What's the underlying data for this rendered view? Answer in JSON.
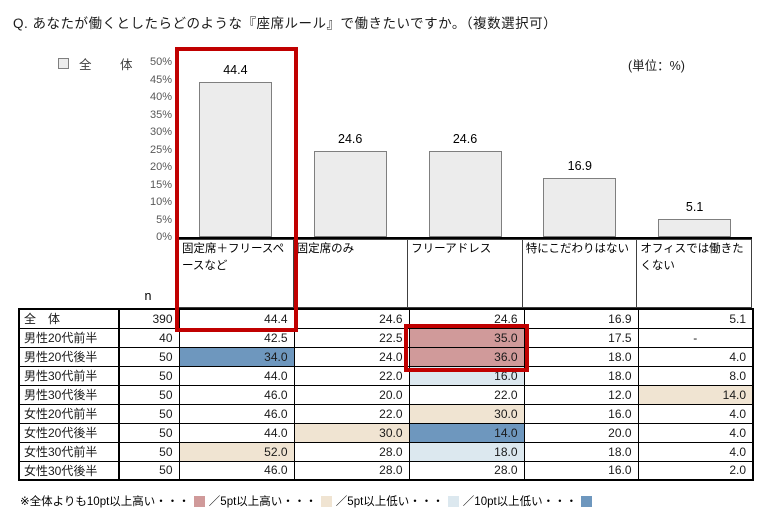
{
  "title": "Q. あなたが働くとしたらどのような『座席ルール』で働きたいですか。（複数選択可）",
  "unit_label": "(単位：%)",
  "legend": {
    "label": "全　体"
  },
  "chart_data": {
    "type": "bar",
    "title": "あなたが働くとしたらどのような『座席ルール』で働きたいですか。（複数選択可）",
    "series_name": "全体",
    "categories": [
      "固定席＋フリースペースなど",
      "固定席のみ",
      "フリーアドレス",
      "特にこだわりはない",
      "オフィスでは働きたくない"
    ],
    "values": [
      44.4,
      24.6,
      24.6,
      16.9,
      5.1
    ],
    "value_labels": [
      "44.4",
      "24.6",
      "24.6",
      "16.9",
      "5.1"
    ],
    "ylabel": "",
    "xlabel": "",
    "unit": "%",
    "ylim": [
      0,
      50
    ],
    "ytick_step": 5,
    "yticks": [
      "50%",
      "45%",
      "40%",
      "35%",
      "30%",
      "25%",
      "20%",
      "15%",
      "10%",
      "5%",
      "0%"
    ],
    "grid": false,
    "legend_position": "top-left",
    "annotations": [
      "赤枠：固定席＋フリースペースなど（全体44.4）",
      "赤枠：男性20代のフリーアドレス（35.0／36.0）"
    ]
  },
  "table": {
    "n_header": "n",
    "columns": [
      "固定席＋フリースペースなど",
      "固定席のみ",
      "フリーアドレス",
      "特にこだわりはない",
      "オフィスでは働きたくない"
    ],
    "rows": [
      {
        "label": "全　体",
        "n": "390",
        "values": [
          "44.4",
          "24.6",
          "24.6",
          "16.9",
          "5.1"
        ],
        "highlights": [
          "none",
          "none",
          "none",
          "none",
          "none"
        ]
      },
      {
        "label": "男性20代前半",
        "n": "40",
        "values": [
          "42.5",
          "22.5",
          "35.0",
          "17.5",
          "-"
        ],
        "highlights": [
          "none",
          "none",
          "high10",
          "none",
          "none"
        ]
      },
      {
        "label": "男性20代後半",
        "n": "50",
        "values": [
          "34.0",
          "24.0",
          "36.0",
          "18.0",
          "4.0"
        ],
        "highlights": [
          "low10",
          "none",
          "high10",
          "none",
          "none"
        ]
      },
      {
        "label": "男性30代前半",
        "n": "50",
        "values": [
          "44.0",
          "22.0",
          "16.0",
          "18.0",
          "8.0"
        ],
        "highlights": [
          "none",
          "none",
          "low5",
          "none",
          "none"
        ]
      },
      {
        "label": "男性30代後半",
        "n": "50",
        "values": [
          "46.0",
          "20.0",
          "22.0",
          "12.0",
          "14.0"
        ],
        "highlights": [
          "none",
          "none",
          "none",
          "none",
          "high5"
        ]
      },
      {
        "label": "女性20代前半",
        "n": "50",
        "values": [
          "46.0",
          "22.0",
          "30.0",
          "16.0",
          "4.0"
        ],
        "highlights": [
          "none",
          "none",
          "high5",
          "none",
          "none"
        ]
      },
      {
        "label": "女性20代後半",
        "n": "50",
        "values": [
          "44.0",
          "30.0",
          "14.0",
          "20.0",
          "4.0"
        ],
        "highlights": [
          "none",
          "high5",
          "low10",
          "none",
          "none"
        ]
      },
      {
        "label": "女性30代前半",
        "n": "50",
        "values": [
          "52.0",
          "28.0",
          "18.0",
          "18.0",
          "4.0"
        ],
        "highlights": [
          "high5",
          "none",
          "low5",
          "none",
          "none"
        ]
      },
      {
        "label": "女性30代後半",
        "n": "50",
        "values": [
          "46.0",
          "28.0",
          "28.0",
          "16.0",
          "2.0"
        ],
        "highlights": [
          "none",
          "none",
          "none",
          "none",
          "none"
        ]
      }
    ]
  },
  "footnote": {
    "segments": [
      {
        "text": "※全体よりも10pt以上高い・・・",
        "swatch": "high10"
      },
      {
        "text": "／5pt以上高い・・・",
        "swatch": "high5"
      },
      {
        "text": "／5pt以上低い・・・",
        "swatch": "low5"
      },
      {
        "text": "／10pt以上低い・・・",
        "swatch": "low10"
      }
    ]
  },
  "colors": {
    "high10": "#d09a9a",
    "high5": "#f0e4d2",
    "low5": "#dce8ef",
    "low10": "#6e97be",
    "red_box": "#c00000",
    "bar_fill": "#ececec",
    "bar_border": "#7f7f7f"
  }
}
